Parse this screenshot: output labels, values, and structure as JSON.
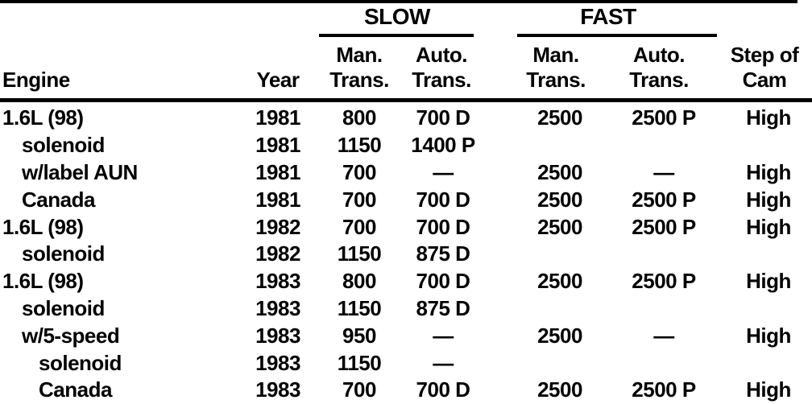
{
  "table": {
    "groups": {
      "slow": "SLOW",
      "fast": "FAST"
    },
    "headers": {
      "engine": "Engine",
      "year": "Year",
      "slow_man": "Man.\nTrans.",
      "slow_auto": "Auto.\nTrans.",
      "fast_man": "Man.\nTrans.",
      "fast_auto": "Auto.\nTrans.",
      "step_of_cam": "Step of\nCam"
    },
    "rows": [
      {
        "engine": "1.6L (98)",
        "year": "1981",
        "slow_man": "800",
        "slow_auto": "700 D",
        "fast_man": "2500",
        "fast_auto": "2500 P",
        "step": "High"
      },
      {
        "engine": "solenoid",
        "year": "1981",
        "slow_man": "1150",
        "slow_auto": "1400 P",
        "fast_man": "",
        "fast_auto": "",
        "step": ""
      },
      {
        "engine": "w/label AUN",
        "year": "1981",
        "slow_man": "700",
        "slow_auto": "—",
        "fast_man": "2500",
        "fast_auto": "—",
        "step": "High"
      },
      {
        "engine": "Canada",
        "year": "1981",
        "slow_man": "700",
        "slow_auto": "700 D",
        "fast_man": "2500",
        "fast_auto": "2500 P",
        "step": "High"
      },
      {
        "engine": "1.6L (98)",
        "year": "1982",
        "slow_man": "700",
        "slow_auto": "700 D",
        "fast_man": "2500",
        "fast_auto": "2500 P",
        "step": "High"
      },
      {
        "engine": "solenoid",
        "year": "1982",
        "slow_man": "1150",
        "slow_auto": "875 D",
        "fast_man": "",
        "fast_auto": "",
        "step": ""
      },
      {
        "engine": "1.6L (98)",
        "year": "1983",
        "slow_man": "800",
        "slow_auto": "700 D",
        "fast_man": "2500",
        "fast_auto": "2500 P",
        "step": "High"
      },
      {
        "engine": "solenoid",
        "year": "1983",
        "slow_man": "1150",
        "slow_auto": "875 D",
        "fast_man": "",
        "fast_auto": "",
        "step": ""
      },
      {
        "engine": "w/5-speed",
        "year": "1983",
        "slow_man": "950",
        "slow_auto": "—",
        "fast_man": "2500",
        "fast_auto": "—",
        "step": "High"
      },
      {
        "engine": "solenoid",
        "year": "1983",
        "slow_man": "1150",
        "slow_auto": "—",
        "fast_man": "",
        "fast_auto": "",
        "step": ""
      },
      {
        "engine": "Canada",
        "year": "1983",
        "slow_man": "700",
        "slow_auto": "700 D",
        "fast_man": "2500",
        "fast_auto": "2500 P",
        "step": "High"
      }
    ],
    "colors": {
      "text": "#000000",
      "background": "#ffffff"
    }
  }
}
